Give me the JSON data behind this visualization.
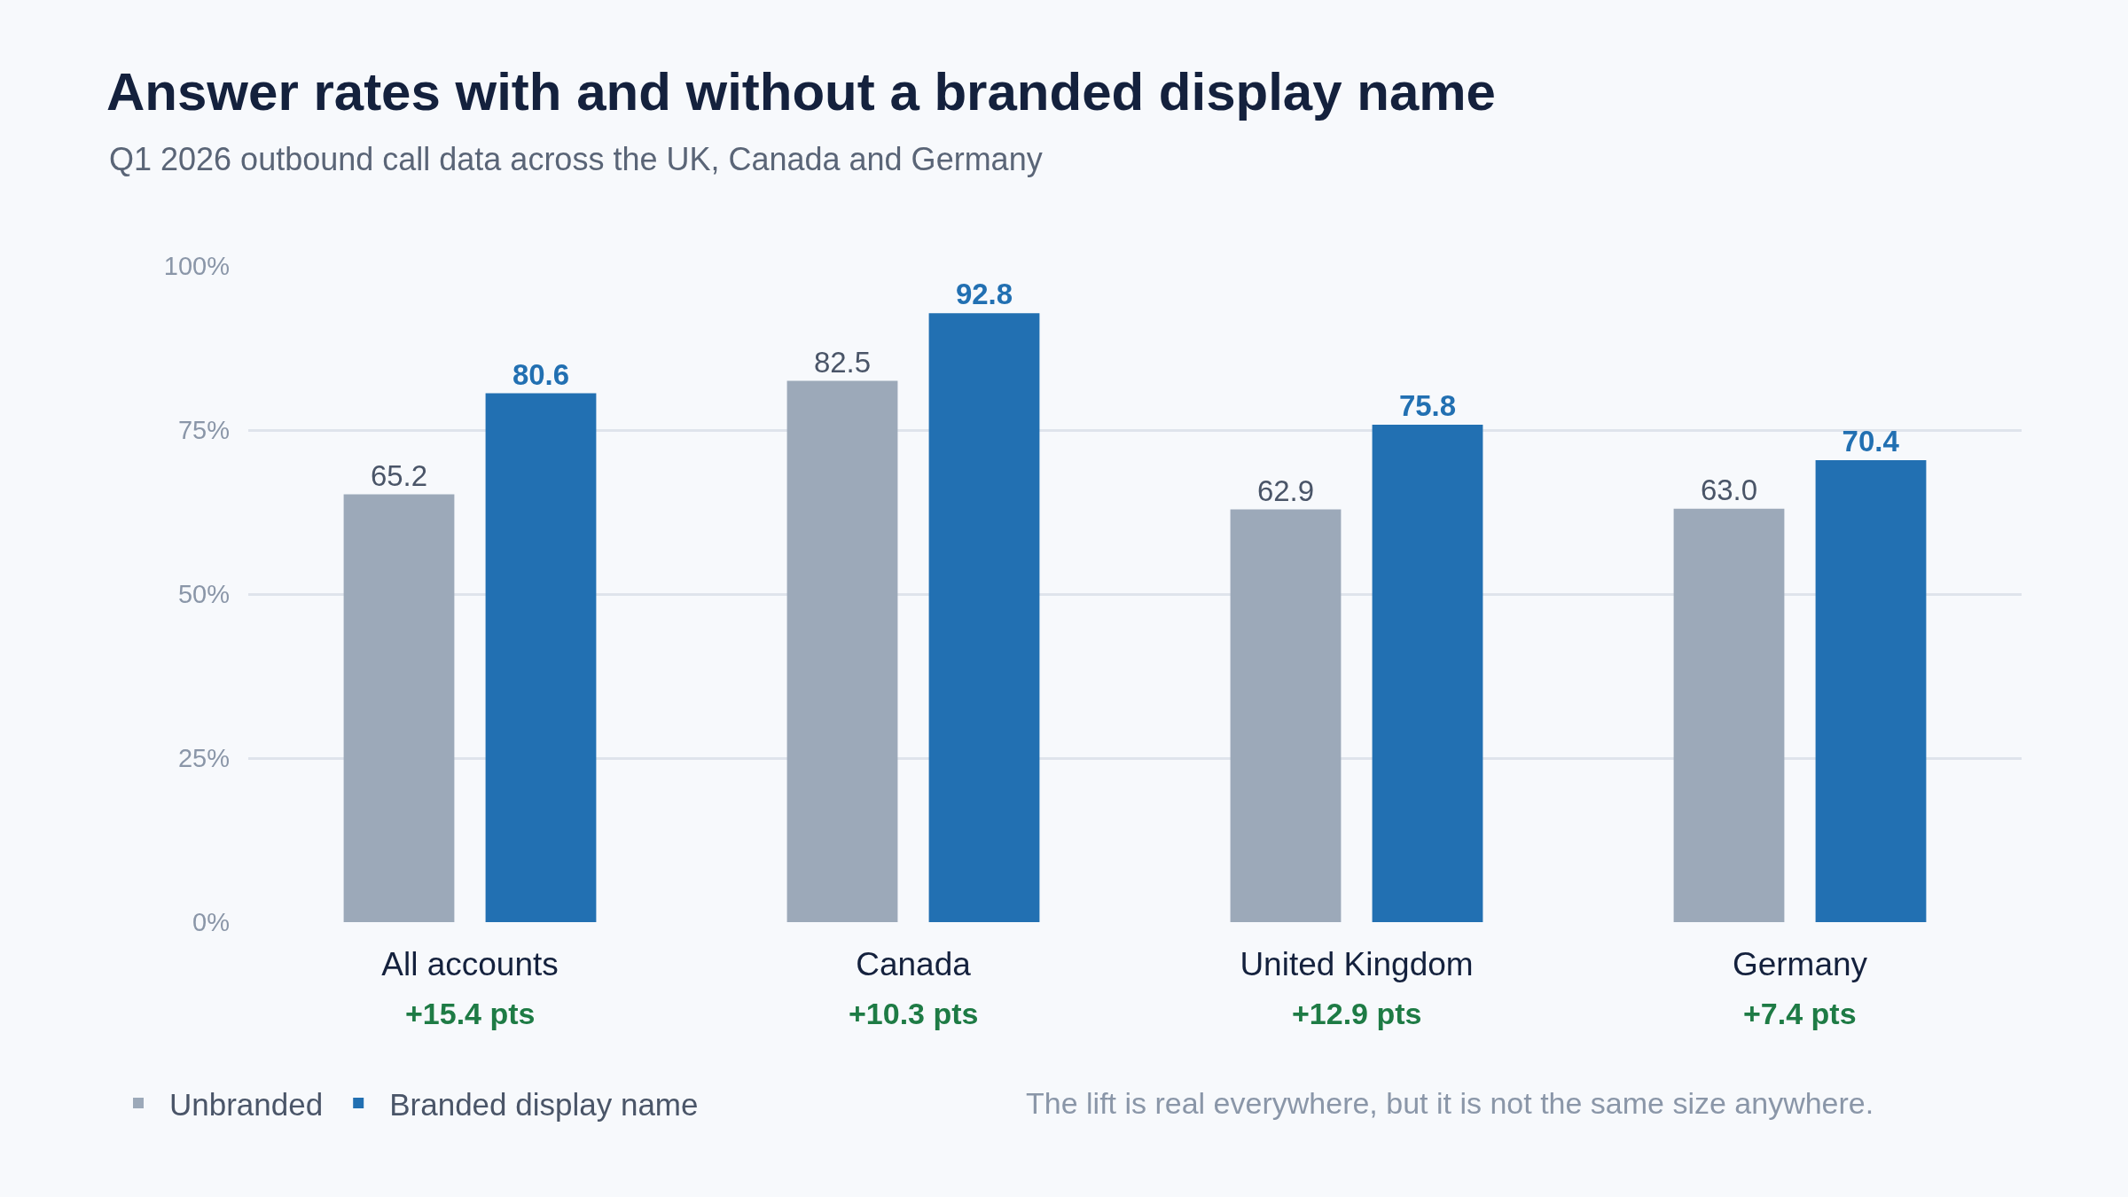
{
  "chart_data": {
    "type": "bar",
    "title": "Answer rates with and without a branded display name",
    "subtitle": "Q1 2026 outbound call data across the UK, Canada and Germany",
    "categories": [
      "All accounts",
      "Canada",
      "United Kingdom",
      "Germany"
    ],
    "series": [
      {
        "name": "Unbranded",
        "color": "#9ca9b9",
        "values": [
          65.2,
          82.5,
          62.9,
          63.0
        ],
        "value_labels": [
          "65.2",
          "82.5",
          "62.9",
          "63.0"
        ]
      },
      {
        "name": "Branded display name",
        "color": "#2270b2",
        "values": [
          80.6,
          92.8,
          75.8,
          70.4
        ],
        "value_labels": [
          "80.6",
          "92.8",
          "75.8",
          "70.4"
        ]
      }
    ],
    "ylim": [
      0,
      100
    ],
    "yticks": [
      {
        "value": 0,
        "label": "0%"
      },
      {
        "value": 25,
        "label": "25%"
      },
      {
        "value": 50,
        "label": "50%"
      },
      {
        "value": 75,
        "label": "75%"
      },
      {
        "value": 100,
        "label": "100%"
      }
    ],
    "grid": "y",
    "legend": "bottom left",
    "annotations": [
      "+15.4 pts",
      "+10.3 pts",
      "+12.9 pts",
      "+7.4 pts",
      "The lift is real everywhere, but it is not the same size anywhere."
    ]
  }
}
